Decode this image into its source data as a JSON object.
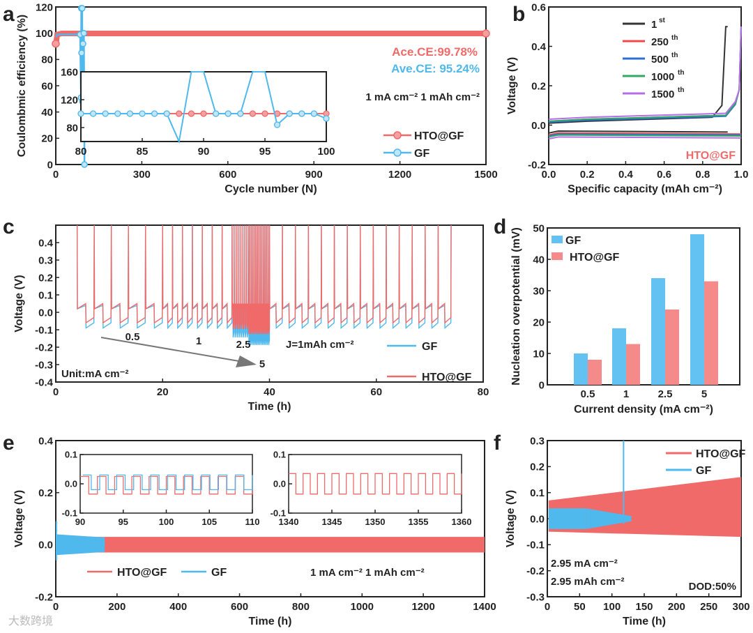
{
  "chart_data": [
    {
      "panel": "a",
      "type": "scatter",
      "xlabel": "Cycle number (N)",
      "ylabel": "Coulombmic efficiency (%)",
      "xlim": [
        0,
        1500
      ],
      "ylim": [
        0,
        120
      ],
      "xticks": [
        "0",
        "300",
        "600",
        "900",
        "1200",
        "1500"
      ],
      "yticks": [
        "0",
        "20",
        "40",
        "60",
        "80",
        "100",
        "120"
      ],
      "annotations": [
        "Ace.CE:99.78%",
        "Ave.CE: 95.24%",
        "1 mA cm⁻²  1 mAh cm⁻²"
      ],
      "series": [
        {
          "name": "HTO@GF",
          "color": "#f06a6a",
          "x": [
            1,
            5,
            20,
            100,
            300,
            600,
            900,
            1200,
            1500
          ],
          "y": [
            92,
            99,
            99.8,
            99.8,
            99.8,
            99.8,
            99.8,
            99.8,
            99.8
          ]
        },
        {
          "name": "GF",
          "color": "#4fb8ec",
          "x": [
            1,
            5,
            20,
            60,
            85,
            88,
            89,
            90,
            92,
            93,
            95,
            97,
            98,
            100
          ],
          "y": [
            97,
            99,
            99,
            99,
            99,
            51,
            120,
            85,
            120,
            48,
            92,
            50,
            100,
            0
          ]
        }
      ],
      "inset": {
        "xlim": [
          80,
          100
        ],
        "ylim": [
          60,
          160
        ],
        "xticks": [
          "80",
          "85",
          "90",
          "95",
          "100"
        ],
        "yticks": [
          "80",
          "120",
          "160"
        ],
        "series": [
          {
            "name": "HTO@GF",
            "x": [
              87,
              88,
              89,
              90,
              91,
              92,
              93,
              94,
              95,
              96,
              97,
              98,
              99,
              100
            ],
            "y": [
              100,
              100,
              100,
              100,
              100,
              100,
              100,
              100,
              100,
              100,
              100,
              100,
              100,
              100
            ]
          },
          {
            "name": "GF",
            "x": [
              80,
              81,
              82,
              83,
              84,
              85,
              86,
              87,
              88,
              89,
              90,
              91,
              92,
              93,
              94,
              95,
              96,
              97,
              98,
              99,
              100
            ],
            "y": [
              100,
              100,
              100,
              100,
              100,
              100,
              100,
              100,
              60,
              160,
              160,
              100,
              100,
              100,
              160,
              160,
              84,
              100,
              100,
              100,
              93
            ]
          }
        ]
      }
    },
    {
      "panel": "b",
      "type": "line",
      "xlabel": "Specific capacity (mAh cm⁻²)",
      "ylabel": "Voltage (V)",
      "xlim": [
        0,
        1
      ],
      "ylim": [
        -0.2,
        0.6
      ],
      "xticks": [
        "0.0",
        "0.2",
        "0.4",
        "0.6",
        "0.8",
        "1.0"
      ],
      "yticks": [
        "-0.2",
        "0.0",
        "0.2",
        "0.4",
        "0.6"
      ],
      "label": "HTO@GF",
      "series": [
        {
          "name": "1st",
          "sup": "st",
          "base": "1",
          "color": "#333333",
          "plate": -0.03,
          "strip": 0.02,
          "end": 0.93
        },
        {
          "name": "250th",
          "sup": "th",
          "base": "250",
          "color": "#f04848",
          "plate": -0.04,
          "strip": 0.03,
          "end": 1.0
        },
        {
          "name": "500th",
          "sup": "th",
          "base": "500",
          "color": "#2d6fd6",
          "plate": -0.045,
          "strip": 0.025,
          "end": 1.0
        },
        {
          "name": "1000th",
          "sup": "th",
          "base": "1000",
          "color": "#2fa860",
          "plate": -0.05,
          "strip": 0.03,
          "end": 1.0
        },
        {
          "name": "1500th",
          "sup": "th",
          "base": "1500",
          "color": "#b46ee6",
          "plate": -0.06,
          "strip": 0.04,
          "end": 1.0
        }
      ]
    },
    {
      "panel": "c",
      "type": "line",
      "xlabel": "Time (h)",
      "ylabel": "Voltage (V)",
      "xlim": [
        0,
        80
      ],
      "ylim": [
        -0.4,
        0.5
      ],
      "xticks": [
        "0",
        "20",
        "40",
        "60",
        "80"
      ],
      "yticks": [
        "-0.4",
        "-0.3",
        "-0.2",
        "-0.1",
        "0.0",
        "0.1",
        "0.2",
        "0.3",
        "0.4"
      ],
      "annotations": {
        "rates": [
          "0.5",
          "1",
          "2.5",
          "5"
        ],
        "capacity": "J=1mAh cm⁻²",
        "unit": "Unit:mA cm⁻²"
      },
      "segments": [
        {
          "current": 0.5,
          "t": [
            4,
            20
          ],
          "n": 5
        },
        {
          "current": 1,
          "t": [
            20,
            33
          ],
          "n": 7
        },
        {
          "current": 2.5,
          "t": [
            33,
            36
          ],
          "n": 8
        },
        {
          "current": 5,
          "t": [
            36,
            40
          ],
          "n": 14
        },
        {
          "current": 1,
          "t": [
            40,
            74
          ],
          "n": 14
        }
      ],
      "series": [
        {
          "name": "GF",
          "color": "#4fb8ec",
          "overpotential": 0.09
        },
        {
          "name": "HTO@GF",
          "color": "#f06a6a",
          "overpotential": 0.06
        }
      ]
    },
    {
      "panel": "d",
      "type": "bar",
      "xlabel": "Current density (mA cm⁻²)",
      "ylabel": "Nucleation overpotential (mV)",
      "ylim": [
        0,
        50
      ],
      "categories": [
        "0.5",
        "1",
        "2.5",
        "5"
      ],
      "yticks": [
        "0",
        "10",
        "20",
        "30",
        "40",
        "50"
      ],
      "series": [
        {
          "name": "GF",
          "color": "#63c2f2",
          "values": [
            10,
            18,
            34,
            48
          ]
        },
        {
          "name": "HTO@GF",
          "color": "#f58a8a",
          "values": [
            8,
            13,
            24,
            33
          ]
        }
      ]
    },
    {
      "panel": "e",
      "type": "line",
      "xlabel": "Time (h)",
      "ylabel": "Voltage (V)",
      "xlim": [
        0,
        1400
      ],
      "ylim": [
        -0.2,
        0.4
      ],
      "xticks": [
        "0",
        "200",
        "400",
        "600",
        "800",
        "1000",
        "1200",
        "1400"
      ],
      "yticks": [
        "-0.2",
        "0.0",
        "0.2",
        "0.4"
      ],
      "annotations": [
        "1 mA cm⁻²  1 mAh cm⁻²"
      ],
      "series": [
        {
          "name": "HTO@GF",
          "color": "#f06a6a",
          "t": [
            0,
            1400
          ],
          "amplitude": 0.03
        },
        {
          "name": "GF",
          "color": "#4fb8ec",
          "t": [
            0,
            160
          ],
          "amplitude": 0.04
        }
      ],
      "insets": [
        {
          "xlim": [
            90,
            110
          ],
          "ylim": [
            -0.1,
            0.1
          ],
          "xticks": [
            "90",
            "95",
            "100",
            "105",
            "110"
          ],
          "yticks": [
            "-0.1",
            "0.0",
            "0.1"
          ]
        },
        {
          "xlim": [
            1340,
            1360
          ],
          "ylim": [
            -0.1,
            0.1
          ],
          "xticks": [
            "1340",
            "1345",
            "1350",
            "1355",
            "1360"
          ],
          "yticks": [
            "-0.1",
            "0.0",
            "0.1"
          ]
        }
      ]
    },
    {
      "panel": "f",
      "type": "line",
      "xlabel": "Time (h)",
      "ylabel": "Voltage (V)",
      "xlim": [
        0,
        300
      ],
      "ylim": [
        -0.3,
        0.3
      ],
      "xticks": [
        "0",
        "50",
        "100",
        "150",
        "200",
        "250",
        "300"
      ],
      "yticks": [
        "-0.3",
        "-0.2",
        "-0.1",
        "0.0",
        "0.1",
        "0.2",
        "0.3"
      ],
      "annotations": [
        "2.95 mA cm⁻²",
        "2.95 mAh cm⁻²",
        "DOD:50%"
      ],
      "series": [
        {
          "name": "HTO@GF",
          "color": "#f06a6a",
          "t": [
            0,
            300
          ],
          "upper": [
            0.07,
            0.16
          ],
          "lower": [
            -0.05,
            -0.07
          ]
        },
        {
          "name": "GF",
          "color": "#4fb8ec",
          "t": [
            0,
            130
          ],
          "upper": [
            0.04,
            0.01
          ],
          "lower": [
            -0.04,
            -0.01
          ],
          "spike": {
            "t": 118,
            "v": 0.3
          }
        }
      ]
    }
  ],
  "panel_letters": [
    "a",
    "b",
    "c",
    "d",
    "e",
    "f"
  ],
  "watermark": "大数跨境"
}
